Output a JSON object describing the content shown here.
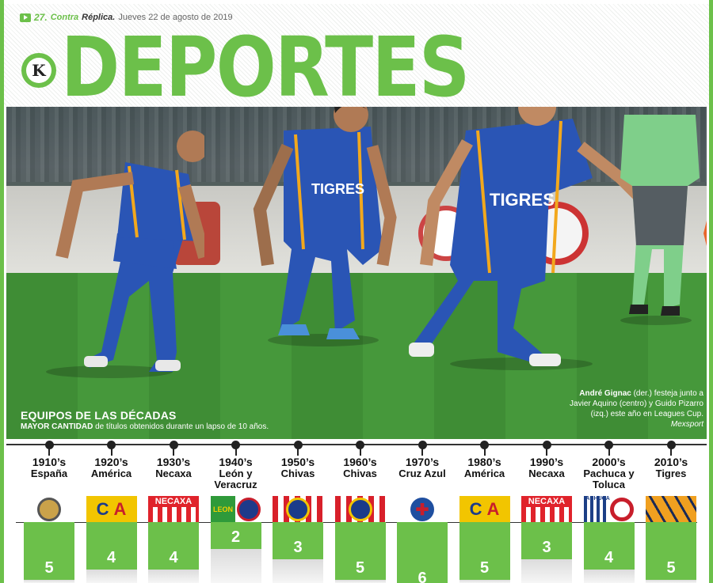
{
  "header": {
    "page_number": "27.",
    "brand_part1": "Contra",
    "brand_part2": "Réplica.",
    "date": "Jueves 22 de agosto de 2019",
    "logo_letter": "K",
    "section_title": "DEPORTES"
  },
  "photo": {
    "caption_bold": "André Gignac",
    "caption_text": " (der.) festeja junto a Javier Aquino (centro) y Guido Pizarro (izq.) este año en Leagues Cup.",
    "credit": "Mexsport",
    "jersey_text": "TIGRES"
  },
  "infographic": {
    "title": "EQUIPOS DE LAS DÉCADAS",
    "subtitle_bold": "MAYOR CANTIDAD",
    "subtitle_text": " de títulos obtenidos durante un lapso de 10 años.",
    "decades": [
      {
        "decade": "1910’s",
        "team": "España",
        "titles": "5",
        "count": 5,
        "color": "#caa24a"
      },
      {
        "decade": "1920’s",
        "team": "América",
        "titles": "4",
        "count": 4,
        "color": "#f2c500"
      },
      {
        "decade": "1930’s",
        "team": "Necaxa",
        "titles": "4",
        "count": 4,
        "color": "#e0232b"
      },
      {
        "decade": "1940’s",
        "team": "León y Veracruz",
        "titles": "2",
        "count": 2,
        "color": "#2f9a3a"
      },
      {
        "decade": "1950’s",
        "team": "Chivas",
        "titles": "3",
        "count": 3,
        "color": "#d8202a"
      },
      {
        "decade": "1960’s",
        "team": "Chivas",
        "titles": "5",
        "count": 5,
        "color": "#d8202a"
      },
      {
        "decade": "1970’s",
        "team": "Cruz Azul",
        "titles": "6",
        "count": 6,
        "color": "#1f4fa0"
      },
      {
        "decade": "1980’s",
        "team": "América",
        "titles": "5",
        "count": 5,
        "color": "#f2c500"
      },
      {
        "decade": "1990’s",
        "team": "Necaxa",
        "titles": "3",
        "count": 3,
        "color": "#e0232b"
      },
      {
        "decade": "2000’s",
        "team": "Pachuca y Toluca",
        "titles": "4",
        "count": 4,
        "color": "#1d3f86"
      },
      {
        "decade": "2010’s",
        "team": "Tigres",
        "titles": "5",
        "count": 5,
        "color": "#f0a020"
      }
    ],
    "crest_labels": {
      "necaxa": "NECAXA",
      "leon": "LEON",
      "pachuca": "PACHUCA",
      "america_1": "C",
      "america_2": "A",
      "cruz_azul": "✚"
    }
  },
  "colors": {
    "accent": "#6cc04a",
    "tigres_blue": "#2a55b5",
    "tigres_gold": "#f2a81d"
  }
}
